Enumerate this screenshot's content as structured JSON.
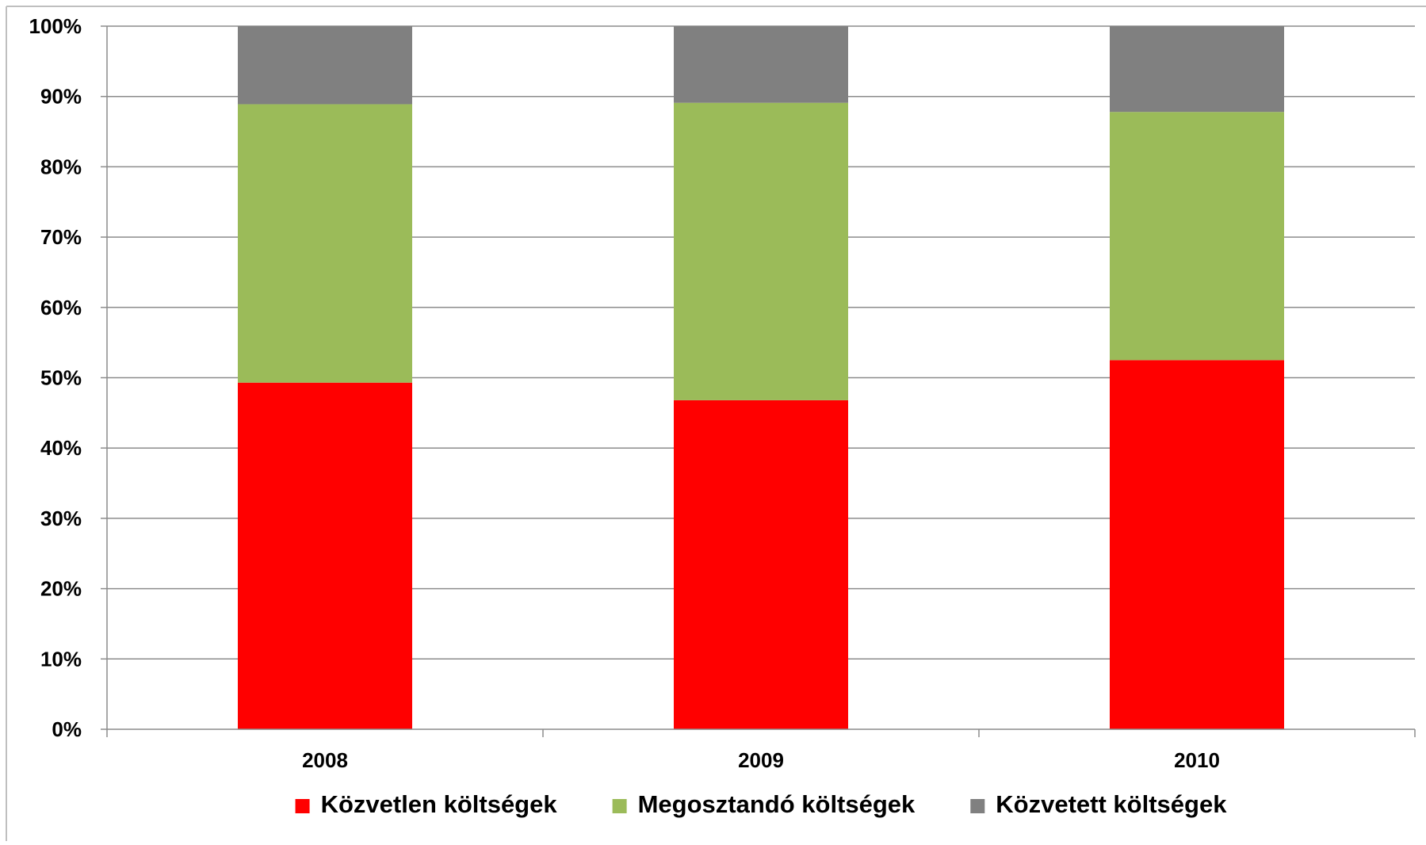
{
  "chart_data": {
    "type": "bar",
    "stacked": true,
    "normalized_percent": true,
    "categories": [
      "2008",
      "2009",
      "2010"
    ],
    "series": [
      {
        "name": "Közvetlen költségek",
        "color": "#ff0000",
        "values": [
          49.3,
          46.8,
          52.5
        ]
      },
      {
        "name": "Megosztandó költségek",
        "color": "#9bbb59",
        "values": [
          39.6,
          42.3,
          35.3
        ]
      },
      {
        "name": "Közvetett költségek",
        "color": "#808080",
        "values": [
          11.1,
          10.9,
          12.2
        ]
      }
    ],
    "yticks": [
      "0%",
      "10%",
      "20%",
      "30%",
      "40%",
      "50%",
      "60%",
      "70%",
      "80%",
      "90%",
      "100%"
    ],
    "ylim": [
      0,
      100
    ],
    "title": "",
    "xlabel": "",
    "ylabel": "",
    "grid": true,
    "legend_position": "bottom"
  }
}
